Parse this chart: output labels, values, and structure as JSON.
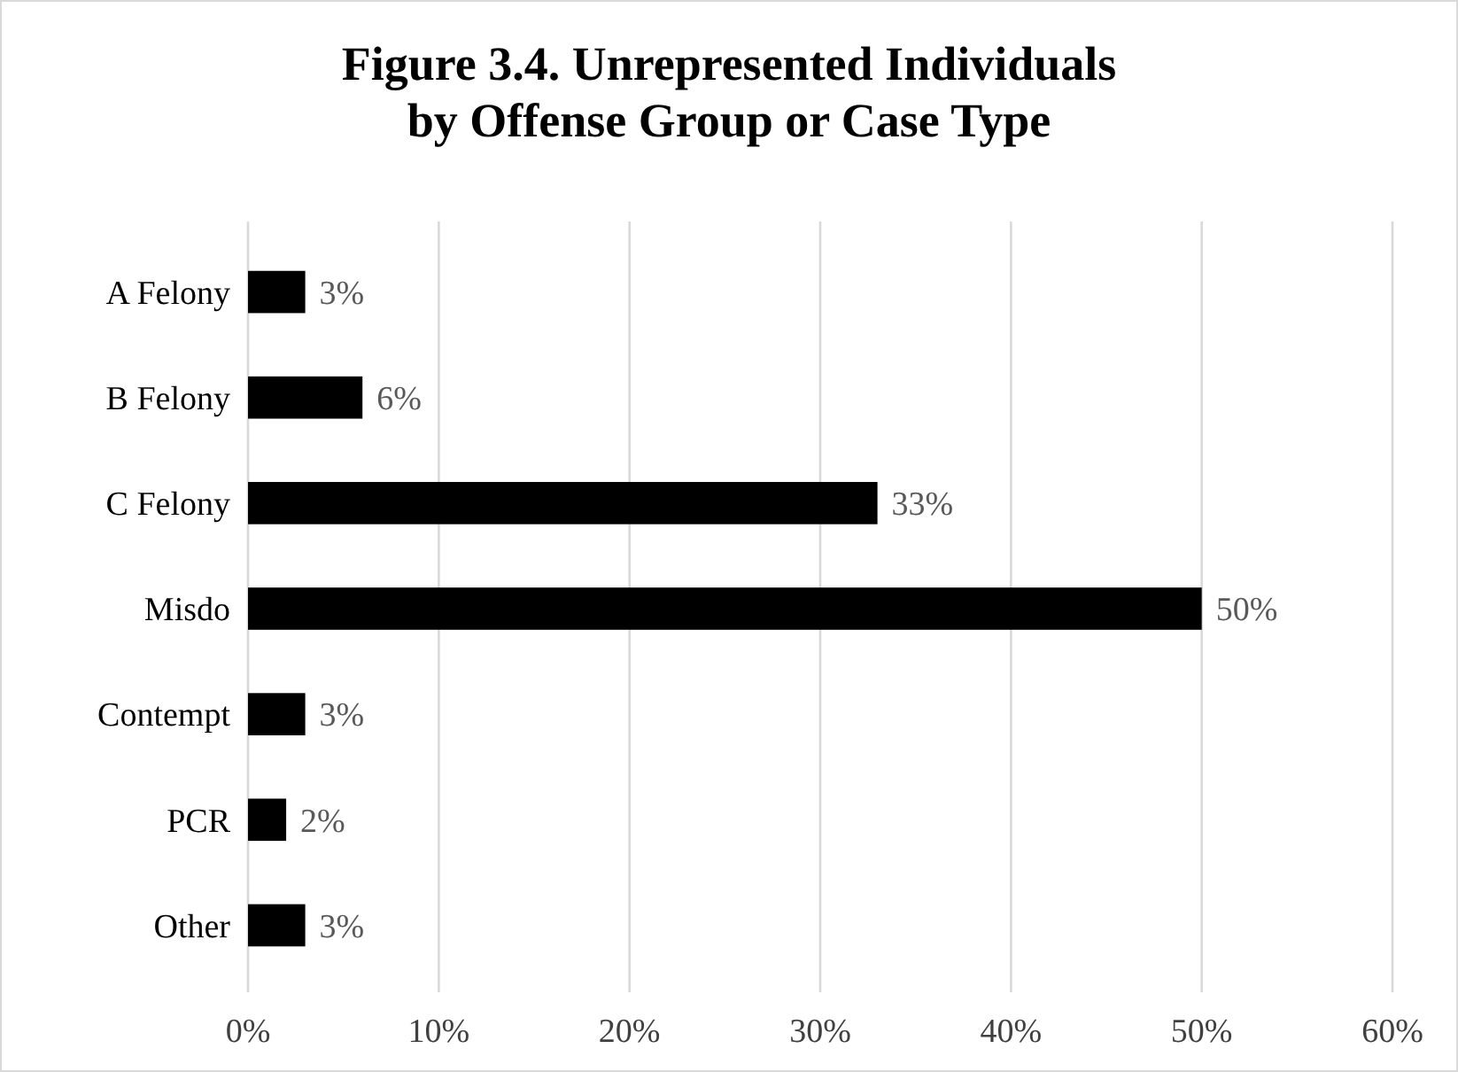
{
  "chart_data": {
    "type": "bar",
    "orientation": "horizontal",
    "title": "Figure 3.4. Unrepresented Individuals\nby Offense Group or Case Type",
    "categories": [
      "A Felony",
      "B Felony",
      "C Felony",
      "Misdo",
      "Contempt",
      "PCR",
      "Other"
    ],
    "values": [
      3,
      6,
      33,
      50,
      3,
      2,
      3
    ],
    "value_labels": [
      "3%",
      "6%",
      "33%",
      "50%",
      "3%",
      "2%",
      "3%"
    ],
    "color": "#000000",
    "xlim": [
      0,
      60
    ],
    "xticks": [
      {
        "value": 0,
        "label": "0%"
      },
      {
        "value": 10,
        "label": "10%"
      },
      {
        "value": 20,
        "label": "20%"
      },
      {
        "value": 30,
        "label": "30%"
      },
      {
        "value": 40,
        "label": "40%"
      },
      {
        "value": 50,
        "label": "50%"
      },
      {
        "value": 60,
        "label": "60%"
      }
    ],
    "grid": "x"
  }
}
